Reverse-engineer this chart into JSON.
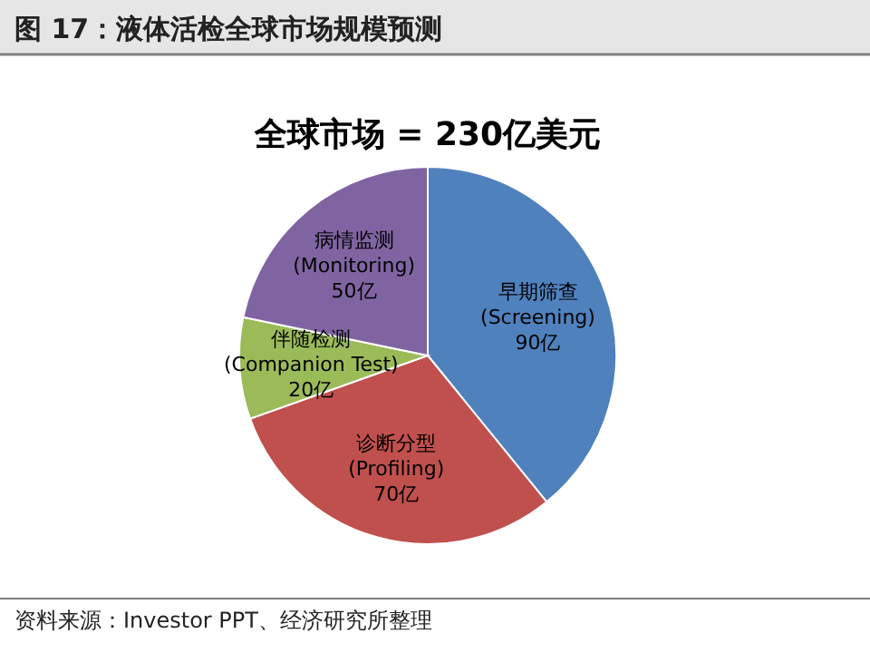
{
  "chart_data": {
    "type": "pie",
    "title": "全球市场 = 230亿美元",
    "subtitle": "图 17：液体活检全球市场规模预测",
    "categories": [
      "早期筛查 (Screening)",
      "诊断分型 (Profiling)",
      "伴随检测 (Companion Test)",
      "病情监测 (Monitoring)"
    ],
    "values": [
      90,
      70,
      20,
      50
    ],
    "value_labels": [
      "90亿",
      "70亿",
      "20亿",
      "50亿"
    ],
    "colors": [
      "#4f81bd",
      "#c0504d",
      "#9bbb59",
      "#8064a2"
    ],
    "annotations": [
      "资料来源：Investor PPT、经济研究所整理"
    ]
  }
}
